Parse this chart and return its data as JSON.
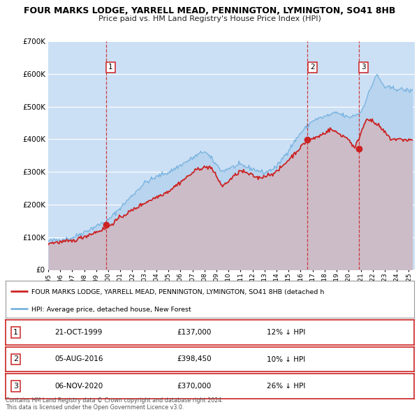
{
  "title": "FOUR MARKS LODGE, YARRELL MEAD, PENNINGTON, LYMINGTON, SO41 8HB",
  "subtitle": "Price paid vs. HM Land Registry's House Price Index (HPI)",
  "bg_color": "#cce0f5",
  "hpi_color": "#7ab4e0",
  "hpi_fill_color": "#b8d4ee",
  "price_color": "#cc2222",
  "price_fill_color": "#e8b0b0",
  "ylim": [
    0,
    700000
  ],
  "xlim_start": 1995.0,
  "xlim_end": 2025.5,
  "yticks": [
    0,
    100000,
    200000,
    300000,
    400000,
    500000,
    600000,
    700000
  ],
  "ytick_labels": [
    "£0",
    "£100K",
    "£200K",
    "£300K",
    "£400K",
    "£500K",
    "£600K",
    "£700K"
  ],
  "xticks": [
    1995,
    1996,
    1997,
    1998,
    1999,
    2000,
    2001,
    2002,
    2003,
    2004,
    2005,
    2006,
    2007,
    2008,
    2009,
    2010,
    2011,
    2012,
    2013,
    2014,
    2015,
    2016,
    2017,
    2018,
    2019,
    2020,
    2021,
    2022,
    2023,
    2024,
    2025
  ],
  "sale_dates": [
    1999.8,
    2016.58,
    2020.84
  ],
  "sale_prices": [
    137000,
    398450,
    370000
  ],
  "sale_labels": [
    "1",
    "2",
    "3"
  ],
  "legend_label_red": "FOUR MARKS LODGE, YARRELL MEAD, PENNINGTON, LYMINGTON, SO41 8HB (detached h",
  "legend_label_blue": "HPI: Average price, detached house, New Forest",
  "table_rows": [
    {
      "num": "1",
      "date": "21-OCT-1999",
      "price": "£137,000",
      "hpi": "12% ↓ HPI"
    },
    {
      "num": "2",
      "date": "05-AUG-2016",
      "price": "£398,450",
      "hpi": "10% ↓ HPI"
    },
    {
      "num": "3",
      "date": "06-NOV-2020",
      "price": "£370,000",
      "hpi": "26% ↓ HPI"
    }
  ],
  "footer": "Contains HM Land Registry data © Crown copyright and database right 2024.\nThis data is licensed under the Open Government Licence v3.0."
}
